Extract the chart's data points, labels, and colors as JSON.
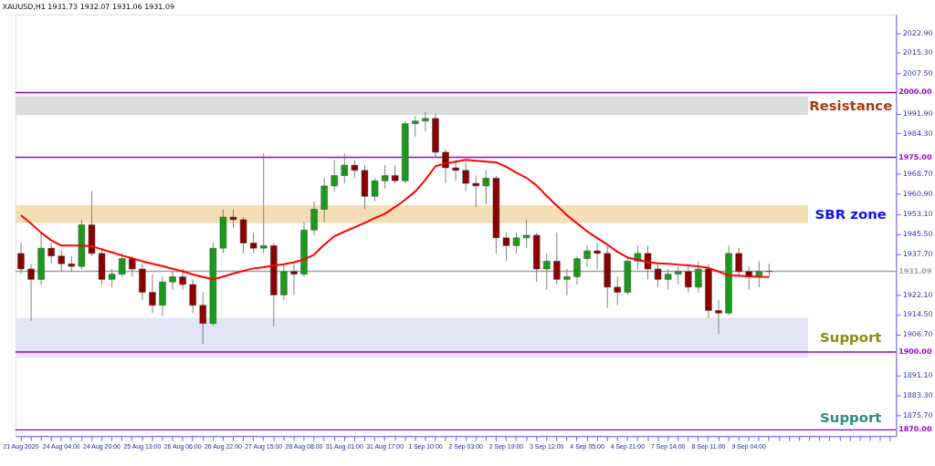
{
  "chart_data": {
    "type": "candlestick",
    "title": "XAUUSD,H1  1931.73 1932.07 1931.06 1931.09",
    "categories": [
      "21 Aug 2020",
      null,
      null,
      null,
      "24 Aug 04:00",
      null,
      null,
      null,
      "24 Aug 20:00",
      null,
      null,
      null,
      "25 Aug 13:00",
      null,
      null,
      null,
      "26 Aug 06:00",
      null,
      null,
      null,
      "26 Aug 22:00",
      null,
      null,
      null,
      "27 Aug 15:00",
      null,
      null,
      null,
      "28 Aug 08:00",
      null,
      null,
      null,
      "31 Aug 01:00",
      null,
      null,
      null,
      "31 Aug 17:00",
      null,
      null,
      null,
      "1 Sep 10:00",
      null,
      null,
      null,
      "2 Sep 03:00",
      null,
      null,
      null,
      "2 Sep 19:00",
      null,
      null,
      null,
      "3 Sep 12:00",
      null,
      null,
      null,
      "4 Sep 05:00",
      null,
      null,
      null,
      "4 Sep 21:00",
      null,
      null,
      null,
      "7 Sep 14:00",
      null,
      null,
      null,
      "8 Sep 11:00",
      null,
      null,
      null,
      "9 Sep 04:00",
      null,
      null
    ],
    "ohlc": [
      [
        1938,
        1942,
        1930,
        1932
      ],
      [
        1932,
        1934,
        1912,
        1928
      ],
      [
        1928,
        1946,
        1926,
        1940
      ],
      [
        1940,
        1942,
        1934,
        1937
      ],
      [
        1937,
        1939,
        1931,
        1934
      ],
      [
        1934,
        1937,
        1931,
        1933
      ],
      [
        1933,
        1951,
        1932,
        1949
      ],
      [
        1949,
        1962,
        1937,
        1938
      ],
      [
        1938,
        1940,
        1926,
        1928
      ],
      [
        1928,
        1932,
        1925,
        1930
      ],
      [
        1930,
        1938,
        1929,
        1936
      ],
      [
        1936,
        1937,
        1929,
        1932
      ],
      [
        1932,
        1934,
        1920,
        1923
      ],
      [
        1923,
        1930,
        1915,
        1918
      ],
      [
        1918,
        1929,
        1914,
        1927
      ],
      [
        1927,
        1931,
        1924,
        1929
      ],
      [
        1929,
        1932,
        1924,
        1926
      ],
      [
        1926,
        1928,
        1915,
        1918
      ],
      [
        1918,
        1923,
        1903,
        1911
      ],
      [
        1911,
        1942,
        1910,
        1940
      ],
      [
        1940,
        1955,
        1938,
        1952
      ],
      [
        1952,
        1955,
        1948,
        1951
      ],
      [
        1951,
        1952,
        1938,
        1942
      ],
      [
        1942,
        1946,
        1938,
        1940
      ],
      [
        1940,
        1976.5,
        1938,
        1941
      ],
      [
        1941,
        1942,
        1910,
        1922
      ],
      [
        1922,
        1934,
        1920,
        1931
      ],
      [
        1931,
        1934,
        1922,
        1930
      ],
      [
        1930,
        1950,
        1929,
        1947
      ],
      [
        1947,
        1958,
        1945,
        1955
      ],
      [
        1955,
        1967,
        1950,
        1964
      ],
      [
        1964,
        1974,
        1962,
        1968
      ],
      [
        1968,
        1976.5,
        1965,
        1972
      ],
      [
        1972,
        1974,
        1967,
        1970
      ],
      [
        1970,
        1972,
        1955,
        1960
      ],
      [
        1960,
        1967,
        1958,
        1966
      ],
      [
        1966,
        1972,
        1963,
        1968
      ],
      [
        1968,
        1972,
        1965,
        1966
      ],
      [
        1966,
        1989,
        1965,
        1988
      ],
      [
        1988,
        1991,
        1983,
        1989
      ],
      [
        1989,
        1992.5,
        1985,
        1990
      ],
      [
        1990,
        1992,
        1975,
        1977
      ],
      [
        1977,
        1978,
        1965,
        1971
      ],
      [
        1971,
        1974,
        1966,
        1970
      ],
      [
        1970,
        1973,
        1962,
        1965
      ],
      [
        1965,
        1968,
        1956,
        1964
      ],
      [
        1964,
        1970,
        1957,
        1967
      ],
      [
        1967,
        1968,
        1938,
        1944
      ],
      [
        1944,
        1946,
        1935,
        1941
      ],
      [
        1941,
        1946,
        1938,
        1944
      ],
      [
        1944,
        1951,
        1940,
        1945
      ],
      [
        1945,
        1946,
        1927,
        1932
      ],
      [
        1932,
        1938,
        1924,
        1935
      ],
      [
        1935,
        1946,
        1926,
        1928
      ],
      [
        1928,
        1932,
        1922,
        1929
      ],
      [
        1929,
        1937,
        1926,
        1936
      ],
      [
        1936,
        1941,
        1933,
        1939
      ],
      [
        1939,
        1942,
        1932,
        1938
      ],
      [
        1938,
        1941,
        1917,
        1925
      ],
      [
        1925,
        1929,
        1918,
        1923
      ],
      [
        1923,
        1937,
        1922,
        1935
      ],
      [
        1935,
        1941,
        1932,
        1938
      ],
      [
        1938,
        1941,
        1928,
        1932
      ],
      [
        1932,
        1934,
        1925,
        1928
      ],
      [
        1928,
        1932,
        1924,
        1930
      ],
      [
        1930,
        1933,
        1926,
        1931
      ],
      [
        1931,
        1933,
        1923,
        1925
      ],
      [
        1925,
        1935,
        1923,
        1932
      ],
      [
        1932,
        1934,
        1913,
        1916
      ],
      [
        1916,
        1920,
        1907,
        1915
      ],
      [
        1915,
        1941,
        1914,
        1938
      ],
      [
        1938,
        1940,
        1929,
        1931
      ],
      [
        1931,
        1933,
        1924,
        1929
      ],
      [
        1929,
        1935,
        1925,
        1931
      ],
      [
        1931,
        1934,
        1929,
        1931.09
      ]
    ],
    "series": [
      {
        "type": "line",
        "color": "#ff0000",
        "values": [
          1952.7,
          1949.5,
          1946,
          1943,
          1941,
          1941,
          1941,
          1940.8,
          1939.6,
          1938.4,
          1937.2,
          1936.1,
          1935,
          1934,
          1933.1,
          1932.1,
          1931.1,
          1929.9,
          1928.9,
          1928,
          1929.1,
          1930.2,
          1931.3,
          1932.2,
          1932.7,
          1933.3,
          1933.8,
          1934.6,
          1935.6,
          1937.6,
          1941.4,
          1944.6,
          1946.4,
          1948.1,
          1949.8,
          1951.6,
          1953.3,
          1955.9,
          1958.7,
          1961.9,
          1966.4,
          1971.6,
          1972.7,
          1973.4,
          1974.1,
          1973.7,
          1973.4,
          1973.1,
          1971.4,
          1969.1,
          1967.1,
          1964.2,
          1960.1,
          1956.4,
          1952.7,
          1949.6,
          1946.5,
          1943.9,
          1941.4,
          1938.6,
          1936.4,
          1935.6,
          1934.7,
          1934.2,
          1934,
          1933.7,
          1933.4,
          1933,
          1932.4,
          1931,
          1929.5,
          1929.4,
          1929.2,
          1929,
          1928.9
        ]
      }
    ],
    "ylim": [
      1867.6,
      2030.1
    ],
    "yticks": [
      {
        "value": 2022.9,
        "label": "2022.90"
      },
      {
        "value": 2015.3,
        "label": "2015.30"
      },
      {
        "value": 2007.5,
        "label": "2007.50"
      },
      {
        "value": 1991.9,
        "label": "1991.90"
      },
      {
        "value": 1984.3,
        "label": "1984.30"
      },
      {
        "value": 1968.7,
        "label": "1968.70"
      },
      {
        "value": 1960.9,
        "label": "1960.90"
      },
      {
        "value": 1953.1,
        "label": "1953.10"
      },
      {
        "value": 1945.5,
        "label": "1945.50"
      },
      {
        "value": 1937.7,
        "label": "1937.70"
      },
      {
        "value": 1922.1,
        "label": "1922.10"
      },
      {
        "value": 1914.5,
        "label": "1914.50"
      },
      {
        "value": 1906.7,
        "label": "1906.70"
      },
      {
        "value": 1891.1,
        "label": "1891.10"
      },
      {
        "value": 1883.3,
        "label": "1883.30"
      },
      {
        "value": 1875.7,
        "label": "1875.70"
      }
    ],
    "ref_lines": [
      {
        "axis": "y",
        "value": 2000,
        "label": "2000.00",
        "color": "#9900cc"
      },
      {
        "axis": "y",
        "value": 1975,
        "label": "1975.00",
        "color": "#9900cc"
      },
      {
        "axis": "y",
        "value": 1931.09,
        "label": "1931.09",
        "color": "#a0a0a0"
      },
      {
        "axis": "y",
        "value": 1900,
        "label": "1900.00",
        "color": "#9900cc"
      },
      {
        "axis": "y",
        "value": 1870,
        "label": "1870.00",
        "color": "#9900cc"
      }
    ],
    "bands": [
      {
        "axis": "y",
        "from": 1991.4,
        "to": 1998.6,
        "label": "Resistance",
        "color": "#dcdcdc"
      },
      {
        "axis": "y",
        "from": 1949.7,
        "to": 1956.6,
        "label": "SBR zone",
        "color": "#f5deb5"
      },
      {
        "axis": "y",
        "from": 1897.8,
        "to": 1913.2,
        "label": "Support",
        "color": "#e4e4f7"
      }
    ],
    "annotations": [
      "Support"
    ],
    "grid": false
  }
}
